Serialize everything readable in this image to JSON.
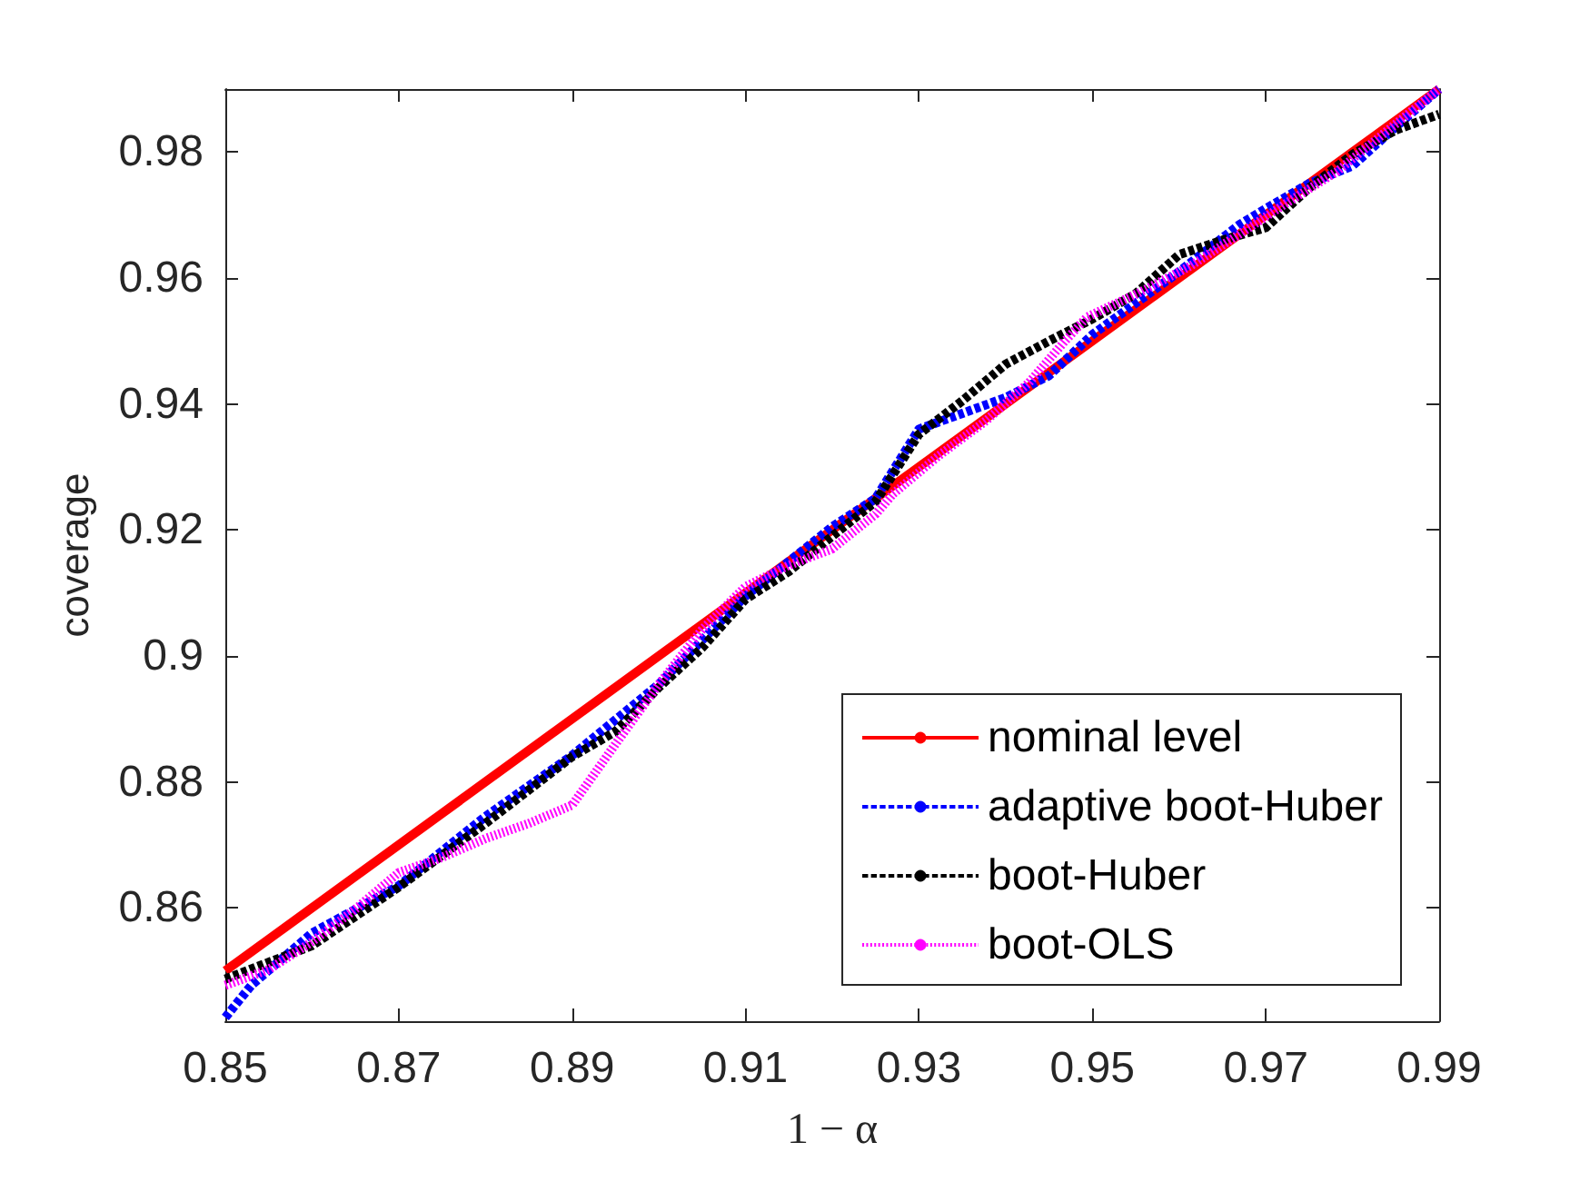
{
  "chart_data": {
    "type": "line",
    "xlabel": "1 − α",
    "ylabel": "coverage",
    "xlim": [
      0.85,
      0.99
    ],
    "xticks": [
      0.85,
      0.87,
      0.89,
      0.91,
      0.93,
      0.95,
      0.97,
      0.99
    ],
    "ylim": [
      0.842,
      0.99
    ],
    "yticks": [
      0.86,
      0.88,
      0.9,
      0.92,
      0.94,
      0.96,
      0.98
    ],
    "grid": false,
    "legend": "bottom right",
    "marker": "none",
    "series": [
      {
        "name": "nominal level",
        "color": "#ff0000",
        "line_style": "solid",
        "x": [
          0.85,
          0.99
        ],
        "values": [
          0.85,
          0.99
        ]
      },
      {
        "name": "adaptive boot-Huber",
        "color": "#0000ff",
        "line_style": "dashed",
        "x": [
          0.85,
          0.853,
          0.86,
          0.87,
          0.88,
          0.89,
          0.9,
          0.91,
          0.92,
          0.925,
          0.93,
          0.936,
          0.94,
          0.945,
          0.95,
          0.955,
          0.96,
          0.967,
          0.97,
          0.975,
          0.98,
          0.985,
          0.99
        ],
        "values": [
          0.8426,
          0.8477,
          0.856,
          0.8635,
          0.8745,
          0.8842,
          0.8955,
          0.9095,
          0.9205,
          0.925,
          0.936,
          0.939,
          0.941,
          0.9445,
          0.951,
          0.956,
          0.961,
          0.9685,
          0.971,
          0.975,
          0.9778,
          0.984,
          0.99
        ]
      },
      {
        "name": "boot-Huber",
        "color": "#000000",
        "line_style": "dashed",
        "x": [
          0.85,
          0.86,
          0.87,
          0.88,
          0.89,
          0.895,
          0.9,
          0.905,
          0.91,
          0.915,
          0.92,
          0.925,
          0.93,
          0.935,
          0.94,
          0.945,
          0.95,
          0.955,
          0.96,
          0.965,
          0.97,
          0.975,
          0.98,
          0.985,
          0.99
        ],
        "values": [
          0.8487,
          0.854,
          0.8633,
          0.8734,
          0.884,
          0.888,
          0.895,
          0.9013,
          0.909,
          0.9134,
          0.919,
          0.9245,
          0.9352,
          0.9405,
          0.9463,
          0.95,
          0.9535,
          0.9575,
          0.9637,
          0.966,
          0.968,
          0.9743,
          0.9796,
          0.9835,
          0.986
        ]
      },
      {
        "name": "boot-OLS",
        "color": "#ff00ff",
        "line_style": "dotted",
        "x": [
          0.85,
          0.855,
          0.86,
          0.865,
          0.87,
          0.875,
          0.88,
          0.885,
          0.89,
          0.895,
          0.9,
          0.905,
          0.91,
          0.915,
          0.92,
          0.925,
          0.927,
          0.9323,
          0.9377,
          0.9427,
          0.9469,
          0.9494,
          0.9553,
          0.9613,
          0.967,
          0.9724,
          0.9782,
          0.9834,
          0.99
        ],
        "values": [
          0.8477,
          0.8502,
          0.8546,
          0.8598,
          0.8656,
          0.868,
          0.871,
          0.8734,
          0.8763,
          0.886,
          0.8955,
          0.9042,
          0.911,
          0.9144,
          0.917,
          0.9225,
          0.9257,
          0.9318,
          0.9373,
          0.9434,
          0.9501,
          0.9538,
          0.9576,
          0.9619,
          0.967,
          0.9719,
          0.9769,
          0.9827,
          0.99
        ]
      }
    ]
  }
}
